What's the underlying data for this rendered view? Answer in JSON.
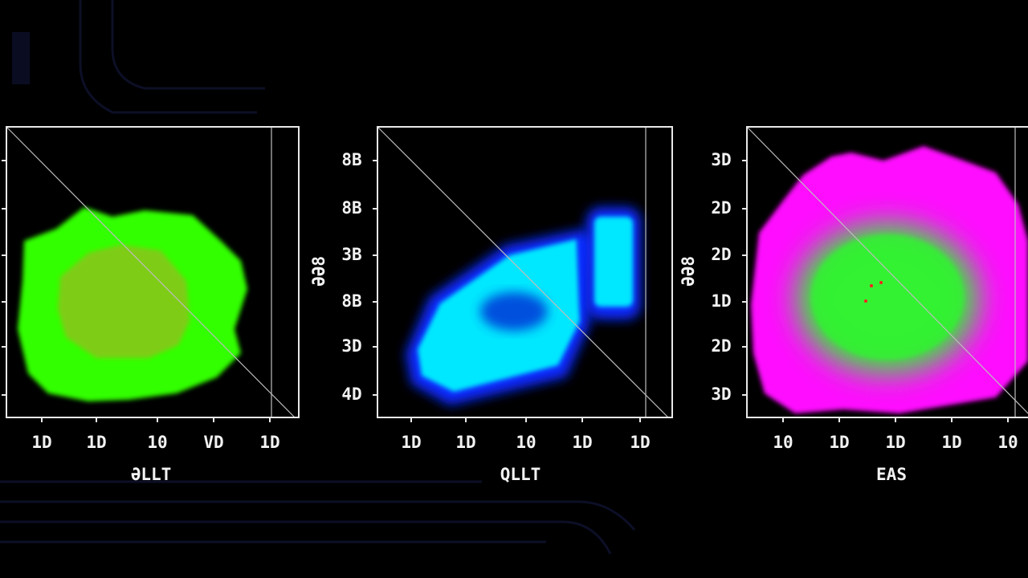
{
  "chart_data": [
    {
      "type": "scatter",
      "xlabel": "ƏLLT",
      "xtick_labels": [
        "1D",
        "1D",
        "10",
        "VD",
        "1D"
      ],
      "colors": [
        "#33ff00",
        "#7fcc14"
      ]
    },
    {
      "type": "scatter",
      "xlabel": "QLLT",
      "ylabel": "ƏƏ8",
      "xtick_labels": [
        "1D",
        "1D",
        "10",
        "1D",
        "1D"
      ],
      "ytick_labels": [
        "8B",
        "8B",
        "3B",
        "8B",
        "3D",
        "4D"
      ],
      "colors": [
        "#0a2aff",
        "#00e8ff",
        "#0636d8"
      ]
    },
    {
      "type": "scatter",
      "xlabel": "EAS",
      "ylabel": "ƏƏ8",
      "xtick_labels": [
        "10",
        "1D",
        "1D",
        "1D",
        "10"
      ],
      "ytick_labels": [
        "3D",
        "2D",
        "2D",
        "1D",
        "2D",
        "3D"
      ],
      "colors": [
        "#ff10ff",
        "#33f233",
        "#ff2020"
      ]
    }
  ]
}
